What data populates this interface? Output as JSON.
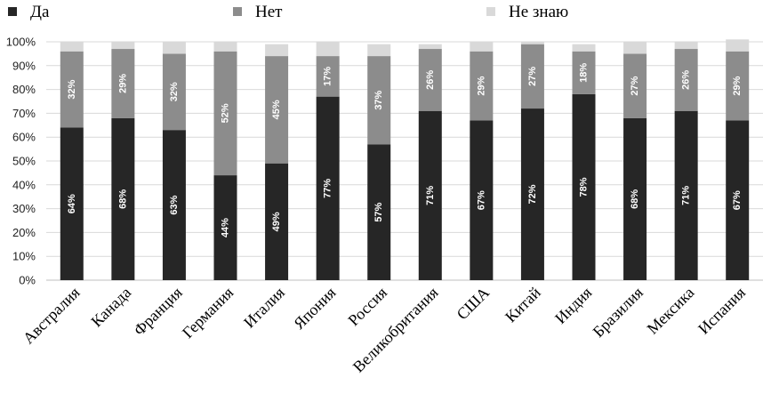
{
  "chart_data": {
    "type": "bar",
    "stacked": true,
    "percent": true,
    "categories": [
      "Австралия",
      "Канада",
      "Франция",
      "Германия",
      "Италия",
      "Япония",
      "Россия",
      "Великобритания",
      "США",
      "Китай",
      "Индия",
      "Бразилия",
      "Мексика",
      "Испания"
    ],
    "series": [
      {
        "name": "Да",
        "color": "#262626",
        "values": [
          64,
          68,
          63,
          44,
          49,
          77,
          57,
          71,
          67,
          72,
          78,
          68,
          71,
          67
        ],
        "labels": [
          "64%",
          "68%",
          "63%",
          "44%",
          "49%",
          "77%",
          "57%",
          "71%",
          "67%",
          "72%",
          "78%",
          "68%",
          "71%",
          "67%"
        ]
      },
      {
        "name": "Нет",
        "color": "#8c8c8c",
        "values": [
          32,
          29,
          32,
          52,
          45,
          17,
          37,
          26,
          29,
          27,
          18,
          27,
          26,
          29
        ],
        "labels": [
          "32%",
          "29%",
          "32%",
          "52%",
          "45%",
          "17%",
          "37%",
          "26%",
          "29%",
          "27%",
          "18%",
          "27%",
          "26%",
          "29%"
        ]
      },
      {
        "name": "Не знаю",
        "color": "#d9d9d9",
        "values": [
          4,
          3,
          5,
          4,
          5,
          6,
          5,
          2,
          4,
          1,
          3,
          5,
          3,
          5
        ]
      }
    ],
    "ylim": [
      0,
      100
    ],
    "yticks": [
      "0%",
      "10%",
      "20%",
      "30%",
      "40%",
      "50%",
      "60%",
      "70%",
      "80%",
      "90%",
      "100%"
    ],
    "grid": true,
    "legend": "top"
  }
}
